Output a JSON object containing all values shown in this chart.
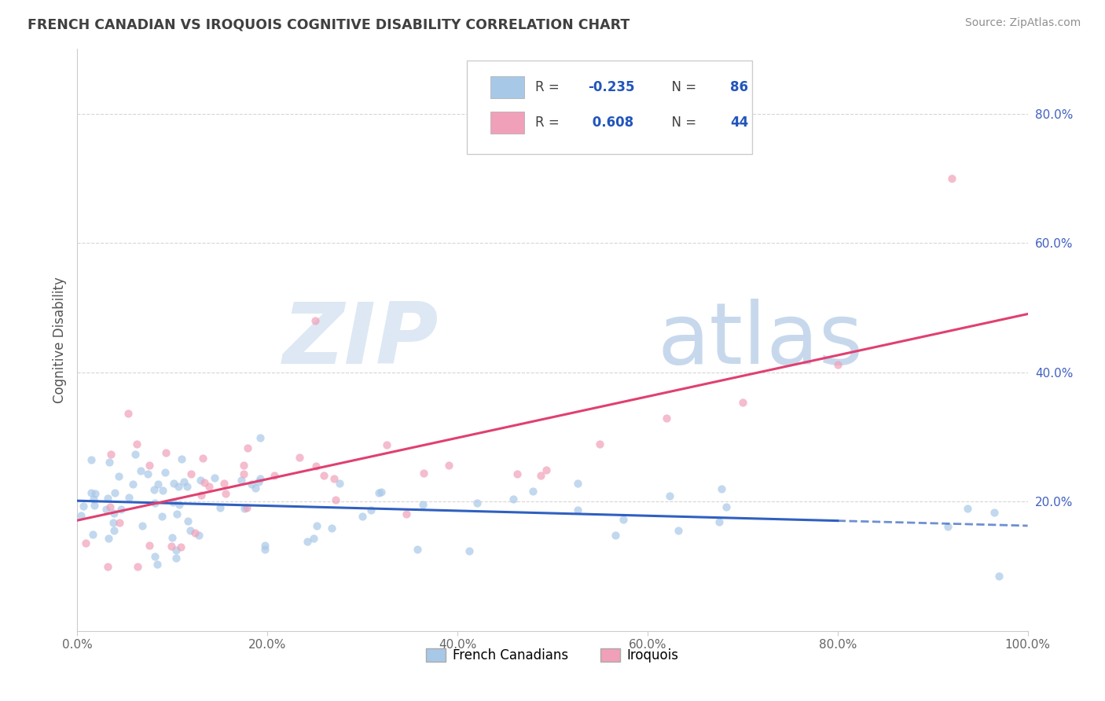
{
  "title": "FRENCH CANADIAN VS IROQUOIS COGNITIVE DISABILITY CORRELATION CHART",
  "source": "Source: ZipAtlas.com",
  "ylabel": "Cognitive Disability",
  "xlim": [
    0.0,
    1.0
  ],
  "ylim": [
    0.0,
    0.9
  ],
  "xtick_vals": [
    0.0,
    0.2,
    0.4,
    0.6,
    0.8,
    1.0
  ],
  "xtick_labels": [
    "0.0%",
    "20.0%",
    "40.0%",
    "60.0%",
    "80.0%",
    "100.0%"
  ],
  "ytick_vals": [
    0.2,
    0.4,
    0.6,
    0.8
  ],
  "ytick_labels": [
    "20.0%",
    "40.0%",
    "60.0%",
    "80.0%"
  ],
  "blue_scatter_color": "#A8C8E8",
  "pink_scatter_color": "#F0A0B8",
  "blue_line_color": "#3060C0",
  "pink_line_color": "#E04070",
  "title_color": "#404040",
  "source_color": "#909090",
  "axis_label_color": "#555555",
  "ytick_color": "#4060C0",
  "grid_color": "#CCCCCC",
  "background_color": "#FFFFFF",
  "watermark_zip_color": "#DDE8F4",
  "watermark_atlas_color": "#C8D8EC",
  "legend_box_color": "#FFFFFF",
  "legend_border_color": "#CCCCCC",
  "legend_text_color": "#404040",
  "legend_value_color": "#2255BB",
  "scatter_size": 55,
  "scatter_alpha": 0.7,
  "fc_line_solid_end": 0.8,
  "fc_line_start_y": 0.215,
  "fc_line_end_y": 0.145,
  "iq_line_start_y": 0.185,
  "iq_line_end_y": 0.445
}
